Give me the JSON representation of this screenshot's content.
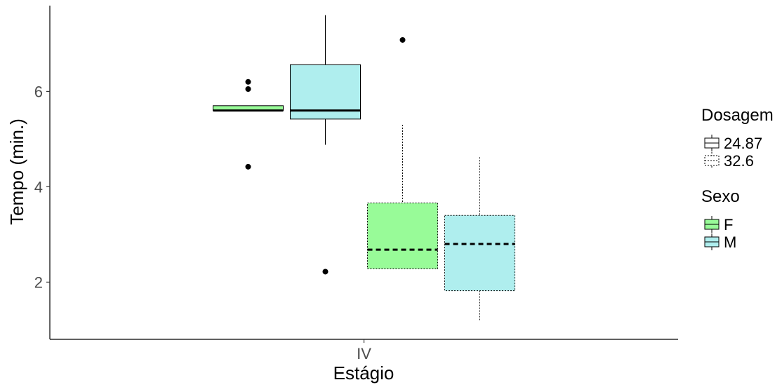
{
  "chart_data": {
    "type": "boxplot",
    "title": "",
    "xlabel": "Estágio",
    "ylabel": "Tempo (min.)",
    "categories": [
      "IV"
    ],
    "ylim": [
      0.8,
      7.8
    ],
    "yticks": [
      2,
      4,
      6
    ],
    "grid": false,
    "legend_placement": "right",
    "legends": [
      {
        "title": "Dosagem",
        "entries": [
          {
            "label": "24.87",
            "linestyle": "solid"
          },
          {
            "label": "32.6",
            "linestyle": "dotted"
          }
        ]
      },
      {
        "title": "Sexo",
        "entries": [
          {
            "label": "F",
            "color": "#98FB98"
          },
          {
            "label": "M",
            "color": "#AFEEEE"
          }
        ]
      }
    ],
    "boxes": [
      {
        "category": "IV",
        "sexo": "F",
        "dosagem": "24.87",
        "fill": "#98FB98",
        "linestyle": "solid",
        "whisker_low": 5.6,
        "q1": 5.6,
        "median": 5.6,
        "q3": 5.7,
        "whisker_high": 5.7,
        "outliers": [
          6.2,
          6.05,
          4.42
        ]
      },
      {
        "category": "IV",
        "sexo": "M",
        "dosagem": "24.87",
        "fill": "#AFEEEE",
        "linestyle": "solid",
        "whisker_low": 4.88,
        "q1": 5.42,
        "median": 5.6,
        "q3": 6.56,
        "whisker_high": 7.6,
        "outliers": [
          2.22
        ]
      },
      {
        "category": "IV",
        "sexo": "F",
        "dosagem": "32.6",
        "fill": "#98FB98",
        "linestyle": "dotted",
        "whisker_low": 2.28,
        "q1": 2.28,
        "median": 2.68,
        "q3": 3.66,
        "whisker_high": 5.3,
        "outliers": [
          7.08
        ]
      },
      {
        "category": "IV",
        "sexo": "M",
        "dosagem": "32.6",
        "fill": "#AFEEEE",
        "linestyle": "dotted",
        "whisker_low": 1.2,
        "q1": 1.82,
        "median": 2.8,
        "q3": 3.4,
        "whisker_high": 4.62,
        "outliers": []
      }
    ]
  }
}
